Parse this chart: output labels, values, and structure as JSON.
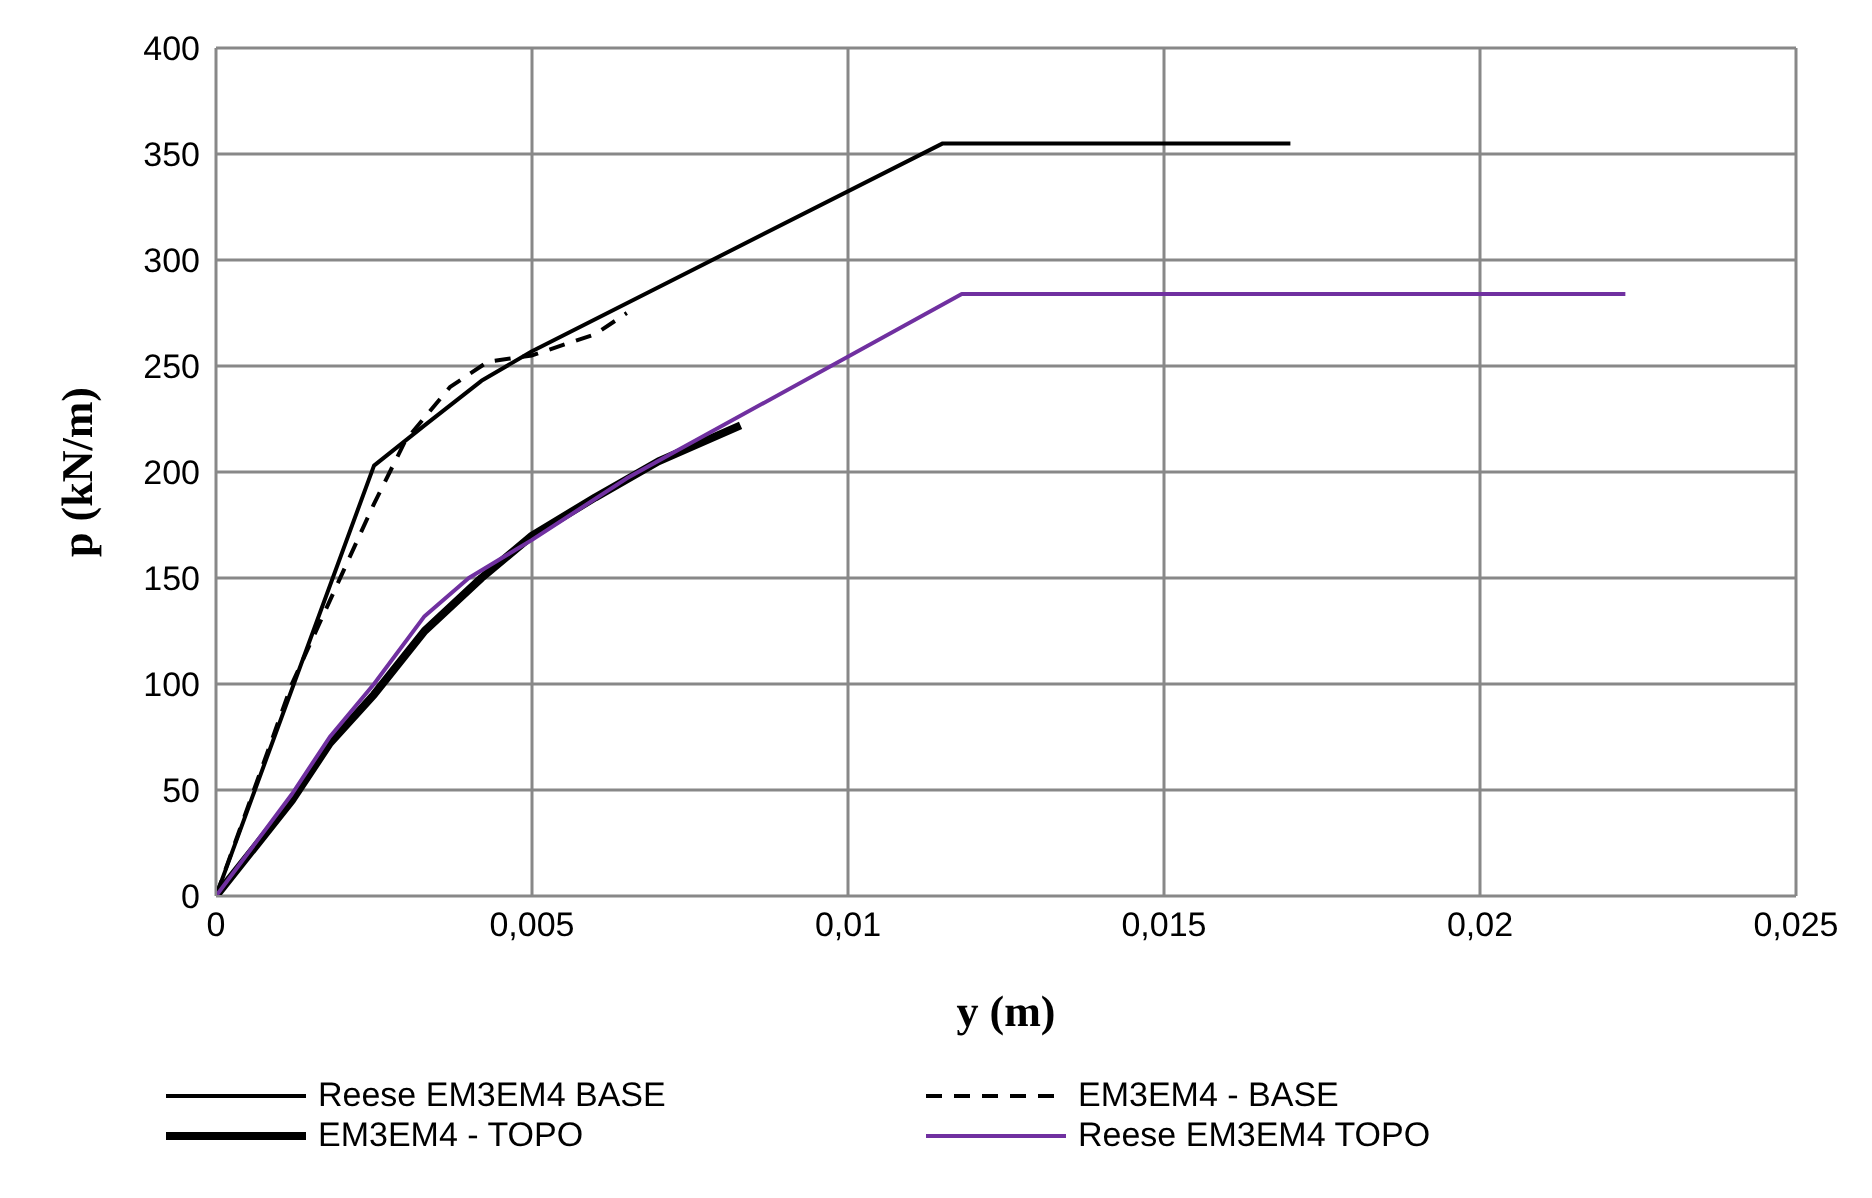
{
  "chart_data": {
    "type": "line",
    "xlabel": "y (m)",
    "ylabel": "p (kN/m)",
    "xlim": [
      0,
      0.025
    ],
    "xticks": [
      0,
      {
        "value": 0.005,
        "label": "0,005"
      },
      {
        "value": 0.01,
        "label": "0,01"
      },
      {
        "value": 0.015,
        "label": "0,015"
      },
      {
        "value": 0.02,
        "label": "0,02"
      },
      {
        "value": 0.025,
        "label": "0,025"
      }
    ],
    "ylim": [
      0,
      400
    ],
    "yticks": [
      0,
      50,
      100,
      150,
      200,
      250,
      300,
      350,
      400
    ],
    "grid": true,
    "legend": "bottom",
    "marker": "none",
    "series": [
      {
        "name": "Reese EM3EM4 BASE",
        "color": "#000000",
        "line_style": "solid",
        "x": [
          0,
          0.0025,
          0.0033,
          0.0042,
          0.005,
          0.0115,
          0.017
        ],
        "values": [
          0,
          203,
          222,
          243,
          257,
          355,
          355
        ]
      },
      {
        "name": "EM3EM4 - BASE",
        "color": "#000000",
        "line_style": "dashed",
        "x": [
          0,
          0.0012,
          0.0025,
          0.003,
          0.0037,
          0.0043,
          0.005,
          0.006,
          0.0065
        ],
        "values": [
          0,
          100,
          185,
          215,
          240,
          252,
          255,
          265,
          275
        ]
      },
      {
        "name": "EM3EM4 - TOPO",
        "color": "#000000",
        "line_style": "solid",
        "x": [
          0,
          0.0012,
          0.0018,
          0.0025,
          0.0033,
          0.0042,
          0.005,
          0.006,
          0.007,
          0.0083
        ],
        "values": [
          0,
          45,
          72,
          95,
          125,
          150,
          170,
          188,
          205,
          222
        ]
      },
      {
        "name": "Reese EM3EM4 TOPO",
        "color": "#7030a0",
        "line_style": "solid",
        "x": [
          0,
          0.0012,
          0.0018,
          0.0025,
          0.0033,
          0.004,
          0.005,
          0.0065,
          0.0118,
          0.0223
        ],
        "values": [
          0,
          48,
          75,
          100,
          132,
          150,
          168,
          197,
          284,
          284
        ]
      }
    ]
  }
}
